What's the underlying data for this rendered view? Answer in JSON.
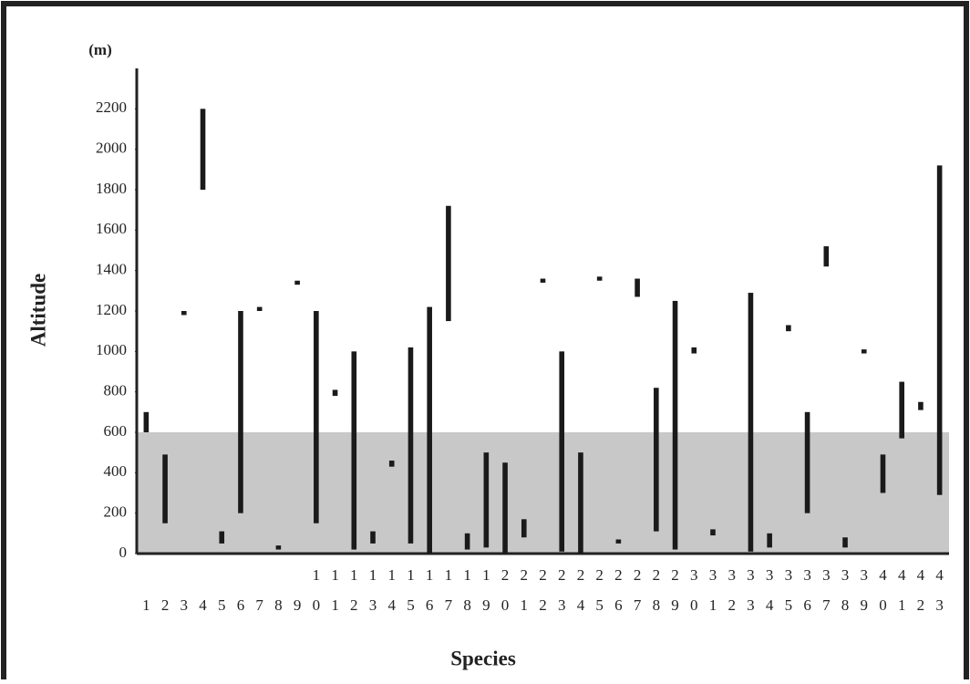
{
  "chart_data": {
    "type": "range-bar",
    "y_label": "Altitude",
    "y_unit": "(m)",
    "x_label": "Species",
    "categories": [
      "1",
      "2",
      "3",
      "4",
      "5",
      "6",
      "7",
      "8",
      "9",
      "10",
      "11",
      "12",
      "13",
      "14",
      "15",
      "16",
      "17",
      "18",
      "19",
      "20",
      "21",
      "22",
      "23",
      "24",
      "25",
      "26",
      "27",
      "28",
      "29",
      "30",
      "31",
      "32",
      "33",
      "34",
      "35",
      "36",
      "37",
      "38",
      "39",
      "40",
      "41",
      "42",
      "43"
    ],
    "low": [
      600,
      150,
      1180,
      1800,
      50,
      200,
      1200,
      20,
      1330,
      150,
      780,
      20,
      50,
      430,
      50,
      0,
      1150,
      20,
      30,
      0,
      80,
      1340,
      10,
      0,
      1350,
      50,
      1270,
      110,
      20,
      990,
      90,
      null,
      10,
      30,
      1100,
      200,
      1420,
      30,
      990,
      300,
      570,
      710,
      290
    ],
    "high": [
      700,
      490,
      1200,
      2200,
      110,
      1200,
      1220,
      40,
      1350,
      1200,
      810,
      1000,
      110,
      460,
      1020,
      1220,
      1720,
      100,
      500,
      450,
      170,
      1360,
      1000,
      500,
      1370,
      70,
      1360,
      820,
      1250,
      1020,
      120,
      null,
      1290,
      100,
      1130,
      700,
      1520,
      80,
      1010,
      490,
      850,
      750,
      1920
    ],
    "color": "#1a1a1a",
    "shaded_range": [
      0,
      600
    ],
    "shade_color": "#c8c8c8",
    "ylim": [
      0,
      2400
    ],
    "yticks": [
      0,
      200,
      400,
      600,
      800,
      1000,
      1200,
      1400,
      1600,
      1800,
      2000,
      2200
    ]
  }
}
